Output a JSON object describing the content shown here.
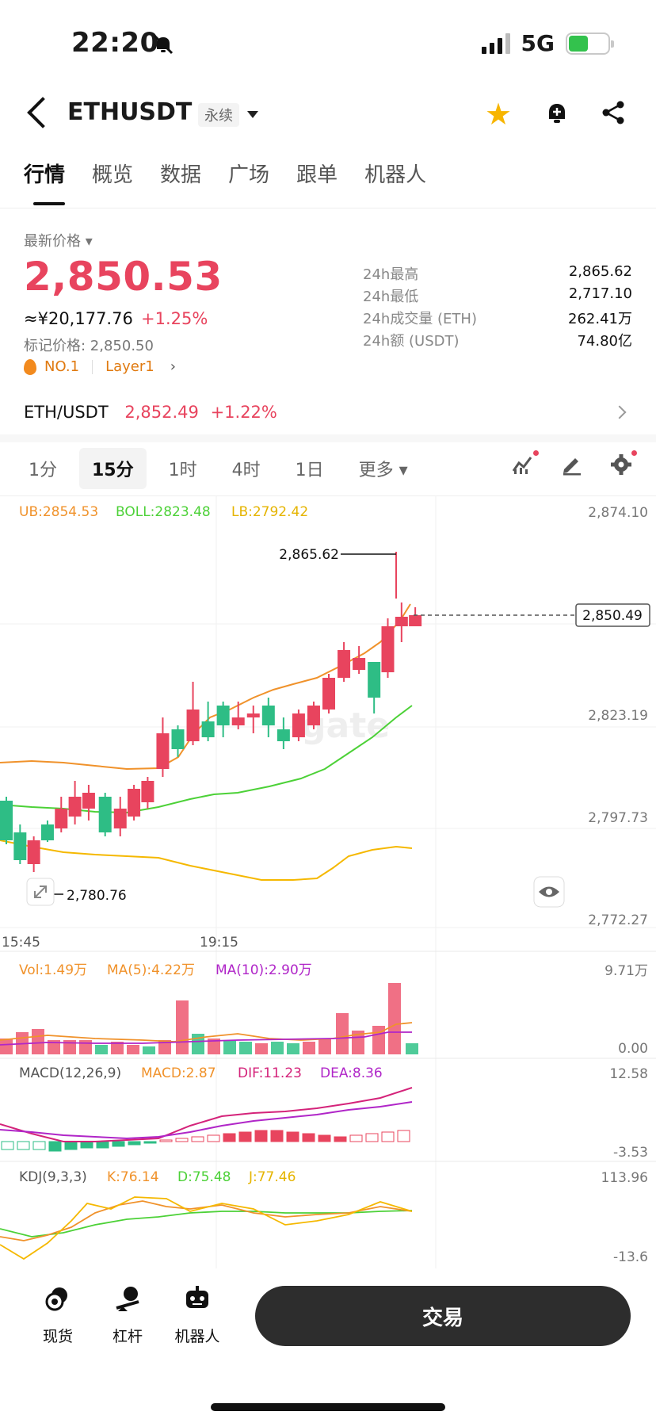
{
  "status_bar": {
    "time": "22:20",
    "network": "5G"
  },
  "header": {
    "symbol": "ETHUSDT",
    "contract_type": "永续"
  },
  "tabs": [
    {
      "label": "行情",
      "active": true
    },
    {
      "label": "概览",
      "active": false
    },
    {
      "label": "数据",
      "active": false
    },
    {
      "label": "广场",
      "active": false
    },
    {
      "label": "跟单",
      "active": false
    },
    {
      "label": "机器人",
      "active": false
    }
  ],
  "ticker": {
    "latest_label": "最新价格",
    "price": "2,850.53",
    "cny": "≈¥20,177.76",
    "change": "+1.25%",
    "mark_price": "标记价格: 2,850.50",
    "rank": "NO.1",
    "category": "Layer1",
    "stats": [
      {
        "label": "24h最高",
        "value": "2,865.62"
      },
      {
        "label": "24h最低",
        "value": "2,717.10"
      },
      {
        "label": "24h成交量 (ETH)",
        "value": "262.41万"
      },
      {
        "label": "24h额 (USDT)",
        "value": "74.80亿"
      }
    ]
  },
  "spot_pair": {
    "name": "ETH/USDT",
    "price": "2,852.49",
    "change": "+1.22%"
  },
  "intervals": [
    {
      "label": "1分",
      "active": false
    },
    {
      "label": "15分",
      "active": true
    },
    {
      "label": "1时",
      "active": false
    },
    {
      "label": "4时",
      "active": false
    },
    {
      "label": "1日",
      "active": false
    },
    {
      "label": "更多",
      "active": false
    }
  ],
  "chart": {
    "indicators": {
      "ub": "UB:2854.53",
      "boll": "BOLL:2823.48",
      "lb": "LB:2792.42"
    },
    "y_axis": [
      "2,874.10",
      "2,823.19",
      "2,797.73",
      "2,772.27"
    ],
    "current_price_label": "2,850.49",
    "high_label": "2,865.62",
    "low_label": "2,780.76",
    "time_labels": [
      "15:45",
      "19:15"
    ],
    "vol": {
      "vol": "Vol:1.49万",
      "ma5": "MA(5):4.22万",
      "ma10": "MA(10):2.90万",
      "max": "9.71万",
      "min": "0.00"
    },
    "macd": {
      "title": "MACD(12,26,9)",
      "macd": "MACD:2.87",
      "dif": "DIF:11.23",
      "dea": "DEA:8.36",
      "max": "12.58",
      "min": "-3.53"
    },
    "kdj": {
      "title": "KDJ(9,3,3)",
      "k": "K:76.14",
      "d": "D:75.48",
      "j": "J:77.46",
      "max": "113.96",
      "min": "-13.6"
    },
    "colors": {
      "up": "#e8445e",
      "down": "#2ebd85",
      "ub": "#f0922b",
      "boll": "#4cd137",
      "lb": "#f5b800",
      "ma10": "#b026c8"
    }
  },
  "bottom_nav": {
    "items": [
      {
        "label": "现货"
      },
      {
        "label": "杠杆"
      },
      {
        "label": "机器人"
      }
    ],
    "trade_label": "交易"
  }
}
